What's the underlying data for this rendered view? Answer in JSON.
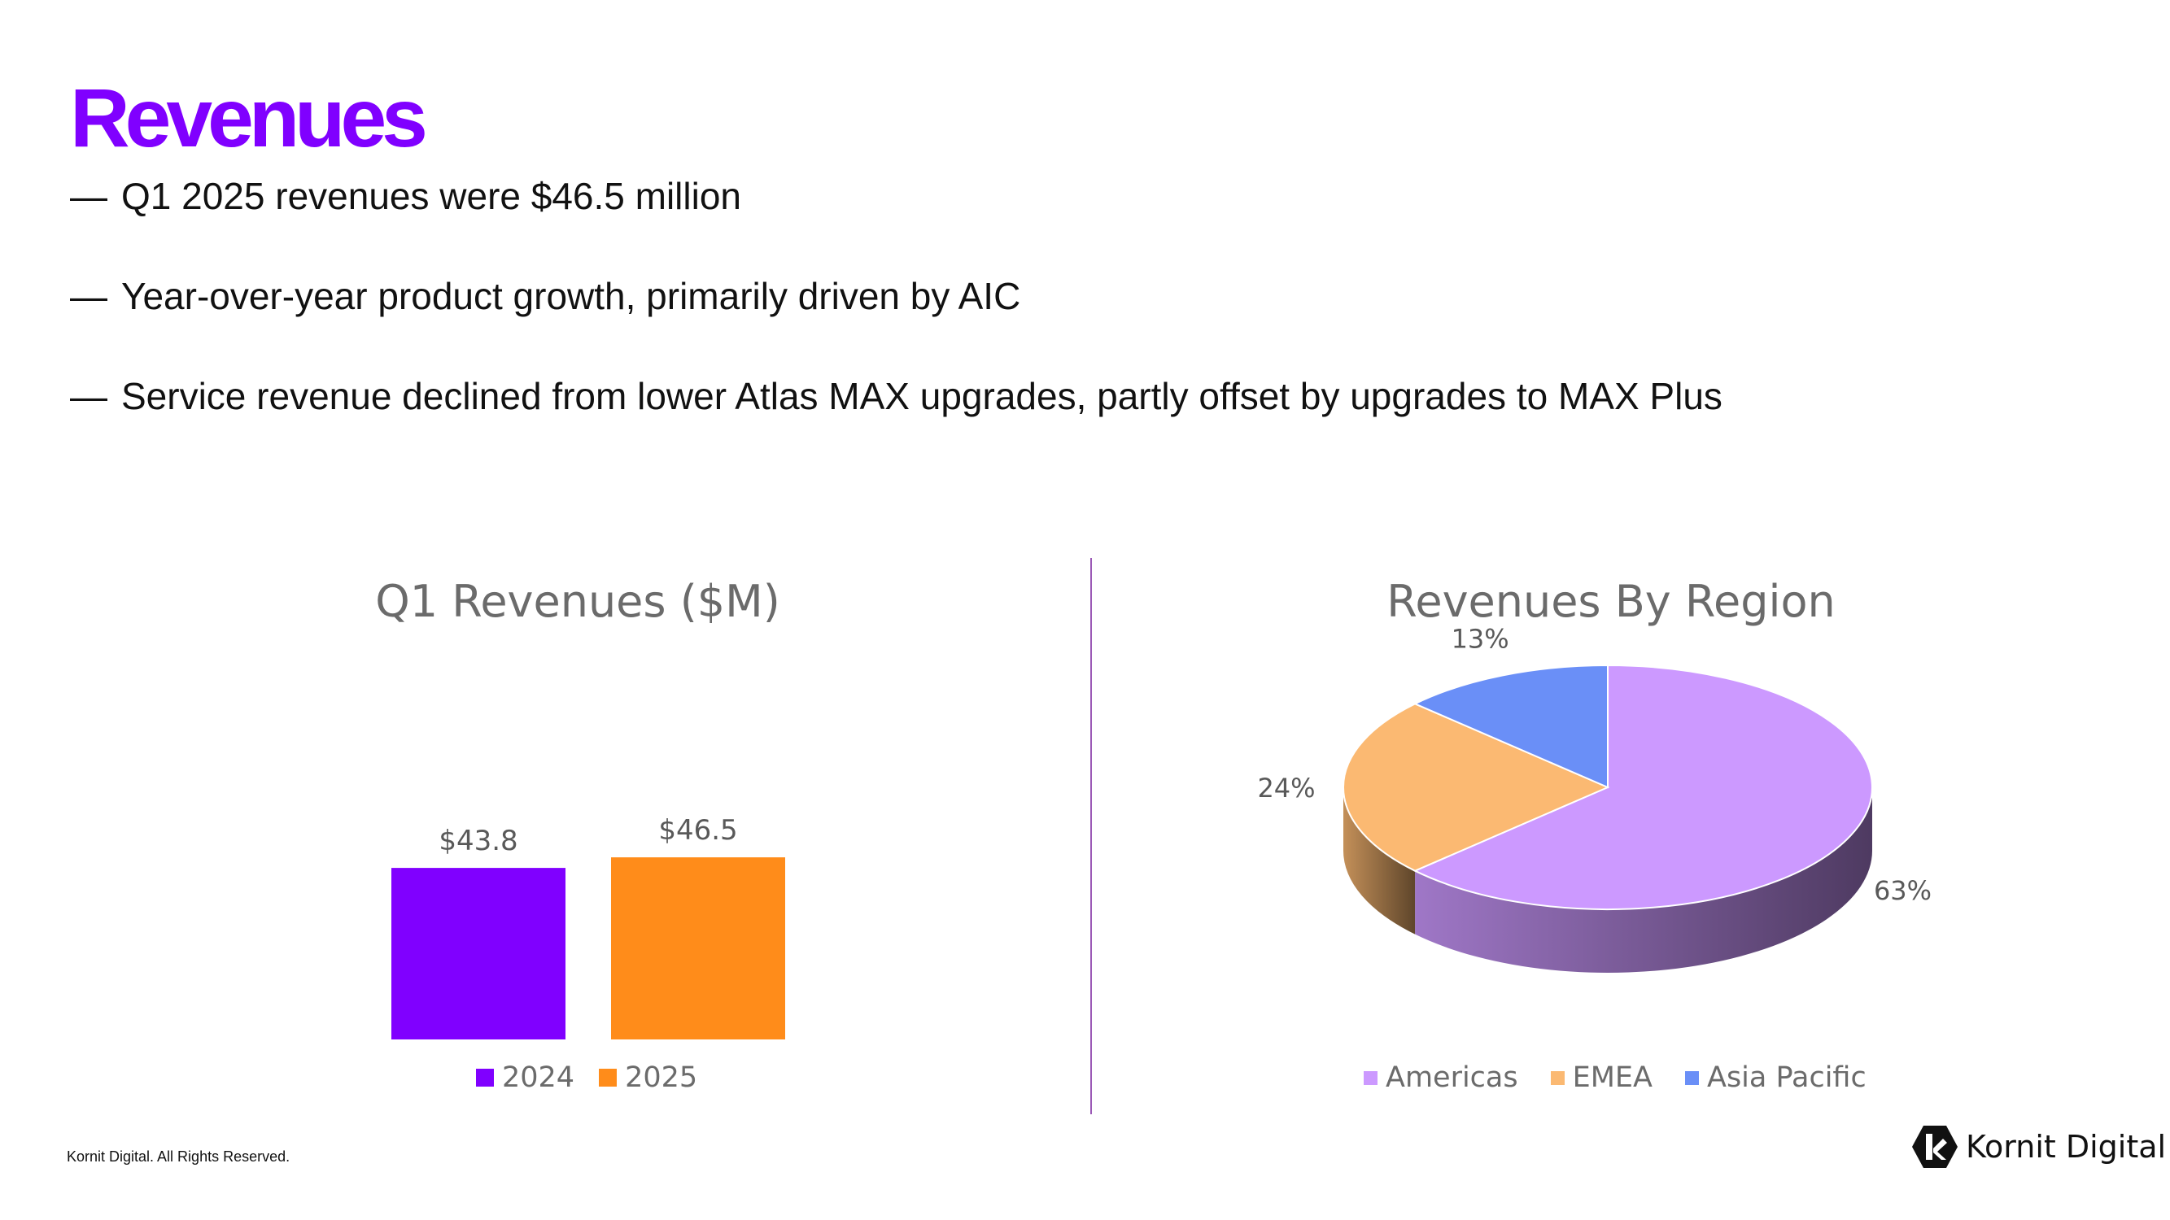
{
  "header": {
    "title": "Revenues"
  },
  "bullets": [
    "Q1 2025 revenues were $46.5 million",
    "Year-over-year product growth, primarily driven by AIC",
    "Service revenue declined from lower Atlas MAX upgrades, partly offset by upgrades to MAX Plus"
  ],
  "bullet_dash": "—",
  "colors": {
    "title": "#8000ff",
    "divider": "#9b59b6",
    "bar_2024": "#8000ff",
    "bar_2025": "#ff8c1a",
    "americas": "#cc99ff",
    "emea": "#fbb972",
    "asia_pacific": "#6a8ff7"
  },
  "chart_data": [
    {
      "type": "bar",
      "title": "Q1 Revenues ($M)",
      "categories": [
        "2024",
        "2025"
      ],
      "values": [
        43.8,
        46.5
      ],
      "data_labels": [
        "$43.8",
        "$46.5"
      ],
      "legend": [
        "2024",
        "2025"
      ],
      "legend_position": "bottom",
      "grid": false
    },
    {
      "type": "pie",
      "title": "Revenues By Region",
      "style": "3d",
      "labels": [
        "Americas",
        "EMEA",
        "Asia Pacific"
      ],
      "values": [
        63,
        24,
        13
      ],
      "data_labels": [
        "63%",
        "24%",
        "13%"
      ],
      "legend_position": "bottom"
    }
  ],
  "footer": {
    "copyright": "Kornit Digital. All Rights Reserved."
  },
  "logo": {
    "text": "Kornit Digital",
    "icon": "kornit-k-logo-icon"
  }
}
